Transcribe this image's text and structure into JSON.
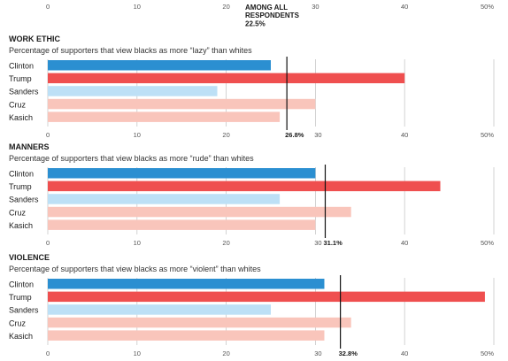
{
  "top_annotation": {
    "line1": "AMONG ALL",
    "line2": "RESPONDENTS",
    "value": "22.5%"
  },
  "chart_data": [
    {
      "type": "bar",
      "orientation": "horizontal",
      "title": "WORK ETHIC",
      "subtitle": "Percentage of supporters that view blacks as more “lazy” than whites",
      "categories": [
        "Clinton",
        "Trump",
        "Sanders",
        "Cruz",
        "Kasich"
      ],
      "values": [
        25,
        40,
        19,
        30,
        26
      ],
      "colors": [
        "#2b8fd1",
        "#ef4f4f",
        "#bde0f6",
        "#f9c5bb",
        "#f9c5bb"
      ],
      "xlim": [
        0,
        50
      ],
      "ticks": [
        "0",
        "10",
        "20",
        "30",
        "40",
        "50%"
      ],
      "reference": {
        "value": 26.8,
        "label": "26.8%"
      },
      "grid": true
    },
    {
      "type": "bar",
      "orientation": "horizontal",
      "title": "MANNERS",
      "subtitle": "Percentage of supporters that view blacks as more “rude” than whites",
      "categories": [
        "Clinton",
        "Trump",
        "Sanders",
        "Cruz",
        "Kasich"
      ],
      "values": [
        30,
        44,
        26,
        34,
        30
      ],
      "colors": [
        "#2b8fd1",
        "#ef4f4f",
        "#bde0f6",
        "#f9c5bb",
        "#f9c5bb"
      ],
      "xlim": [
        0,
        50
      ],
      "ticks": [
        "0",
        "10",
        "20",
        "30",
        "40",
        "50%"
      ],
      "reference": {
        "value": 31.1,
        "label": "31.1%"
      },
      "grid": true
    },
    {
      "type": "bar",
      "orientation": "horizontal",
      "title": "VIOLENCE",
      "subtitle": "Percentage of supporters that view blacks as more “violent” than whites",
      "categories": [
        "Clinton",
        "Trump",
        "Sanders",
        "Cruz",
        "Kasich"
      ],
      "values": [
        31,
        49,
        25,
        34,
        31
      ],
      "colors": [
        "#2b8fd1",
        "#ef4f4f",
        "#bde0f6",
        "#f9c5bb",
        "#f9c5bb"
      ],
      "xlim": [
        0,
        50
      ],
      "ticks": [
        "0",
        "10",
        "20",
        "30",
        "40",
        "50%"
      ],
      "reference": {
        "value": 32.8,
        "label": "32.8%"
      },
      "grid": true
    }
  ],
  "top_axis": {
    "ticks": [
      "0",
      "10",
      "20",
      "30",
      "40",
      "50%"
    ]
  }
}
